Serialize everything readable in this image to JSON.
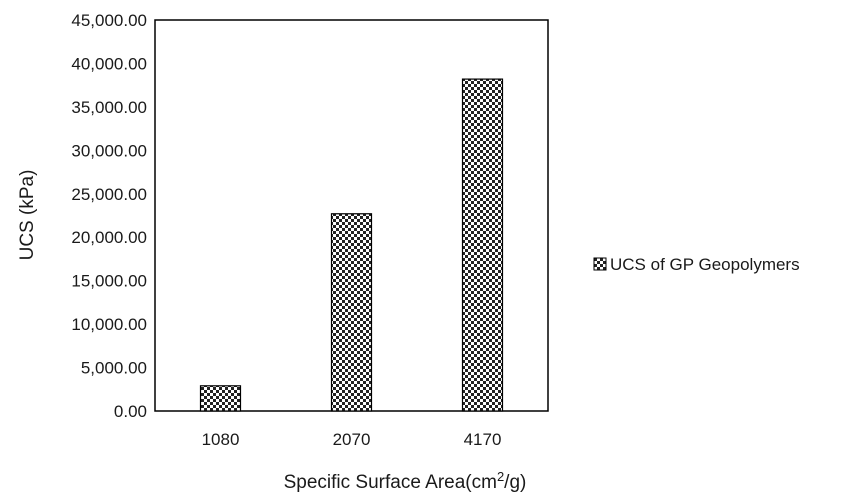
{
  "chart_data": {
    "type": "bar",
    "categories": [
      "1080",
      "2070",
      "4170"
    ],
    "series": [
      {
        "name": "UCS of GP Geopolymers",
        "values": [
          2900,
          22700,
          38200
        ]
      }
    ],
    "ylim": [
      0,
      45000
    ],
    "yticks": [
      "0.00",
      "5,000.00",
      "10,000.00",
      "15,000.00",
      "20,000.00",
      "25,000.00",
      "30,000.00",
      "35,000.00",
      "40,000.00",
      "45,000.00"
    ],
    "ylabel": "UCS (kPa)",
    "xlabel": {
      "prefix": "Specific Surface Area(cm",
      "sup": "2",
      "suffix": "/g)"
    },
    "grid": false,
    "legend_position": "right",
    "bar_pattern": "checkerboard",
    "colors": {
      "bar_dark": "#222222",
      "bar_light": "#ffffff",
      "axis": "#000000"
    }
  }
}
